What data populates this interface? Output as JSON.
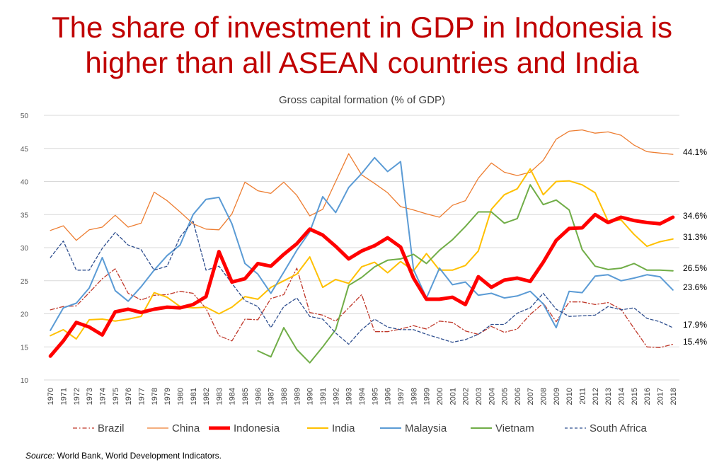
{
  "title_line1": "The share of investment in GDP in Indonesia is",
  "title_line2": "higher than all ASEAN countries and India",
  "chart_data": {
    "type": "line",
    "title": "Gross capital formation (% of GDP)",
    "ylim": [
      10,
      50
    ],
    "yticks": [
      10,
      15,
      20,
      25,
      30,
      35,
      40,
      45,
      50
    ],
    "grid": true,
    "legend_position": "bottom",
    "x": [
      1970,
      1971,
      1972,
      1973,
      1974,
      1975,
      1976,
      1977,
      1978,
      1979,
      1980,
      1981,
      1982,
      1983,
      1984,
      1985,
      1986,
      1987,
      1988,
      1989,
      1990,
      1991,
      1992,
      1993,
      1994,
      1995,
      1996,
      1997,
      1998,
      1999,
      2000,
      2001,
      2002,
      2003,
      2004,
      2005,
      2006,
      2007,
      2008,
      2009,
      2010,
      2011,
      2012,
      2013,
      2014,
      2015,
      2016,
      2017,
      2018
    ],
    "series": [
      {
        "name": "Brazil",
        "color": "#C0392B",
        "style": "dashdot",
        "width": 1.3,
        "values": [
          20.6,
          21.1,
          21.2,
          23.2,
          25.3,
          26.8,
          23.1,
          22.1,
          22.8,
          22.9,
          23.4,
          23.1,
          20.8,
          16.7,
          15.9,
          19.2,
          19.1,
          22.3,
          22.9,
          26.9,
          20.2,
          19.8,
          18.9,
          20.9,
          22.9,
          17.3,
          17.3,
          17.7,
          18.2,
          17.7,
          18.9,
          18.7,
          17.4,
          16.9,
          18.1,
          17.2,
          17.7,
          19.9,
          21.6,
          18.8,
          21.8,
          21.8,
          21.4,
          21.7,
          20.7,
          17.8,
          15.0,
          14.9,
          15.4
        ],
        "label": ""
      },
      {
        "name": "China",
        "color": "#ED7D31",
        "style": "solid",
        "width": 1.3,
        "values": [
          32.6,
          33.3,
          31.1,
          32.7,
          33.1,
          34.9,
          33.1,
          33.7,
          38.4,
          37.1,
          35.4,
          33.6,
          32.8,
          32.7,
          35.1,
          39.9,
          38.6,
          38.2,
          39.9,
          37.9,
          34.8,
          35.8,
          40.0,
          44.2,
          41.0,
          39.7,
          38.3,
          36.2,
          35.7,
          35.1,
          34.6,
          36.4,
          37.1,
          40.5,
          42.8,
          41.4,
          40.9,
          41.4,
          43.2,
          46.4,
          47.6,
          47.8,
          47.3,
          47.5,
          47.0,
          45.5,
          44.5,
          44.3,
          44.1
        ],
        "label": "44.1%"
      },
      {
        "name": "Indonesia",
        "color": "#FF0000",
        "style": "solid",
        "width": 5,
        "values": [
          13.6,
          15.9,
          18.7,
          18.0,
          16.8,
          20.3,
          20.7,
          20.2,
          20.7,
          21.0,
          20.9,
          21.4,
          22.6,
          29.4,
          24.8,
          25.3,
          27.6,
          27.2,
          29.0,
          30.6,
          32.8,
          31.9,
          30.2,
          28.3,
          29.5,
          30.3,
          31.5,
          30.1,
          25.4,
          22.2,
          22.2,
          22.5,
          21.4,
          25.6,
          24.0,
          25.1,
          25.4,
          24.9,
          27.8,
          31.1,
          32.9,
          33.0,
          35.0,
          33.8,
          34.6,
          34.1,
          33.8,
          33.6,
          34.6
        ],
        "label": "34.6%"
      },
      {
        "name": "India",
        "color": "#FFC000",
        "style": "solid",
        "width": 2,
        "values": [
          16.7,
          17.6,
          16.2,
          19.1,
          19.2,
          18.9,
          19.2,
          19.6,
          23.2,
          22.5,
          21.1,
          20.9,
          21.0,
          20.0,
          21.0,
          22.6,
          22.2,
          24.0,
          25.0,
          26.0,
          28.6,
          24.0,
          25.2,
          24.6,
          27.1,
          27.8,
          26.2,
          27.9,
          26.5,
          29.1,
          26.6,
          26.6,
          27.3,
          29.5,
          35.8,
          38.0,
          38.9,
          41.9,
          38.0,
          40.0,
          40.1,
          39.5,
          38.3,
          34.0,
          34.2,
          32.0,
          30.2,
          30.9,
          31.3
        ],
        "label": "31.3%"
      },
      {
        "name": "Malaysia",
        "color": "#5B9BD5",
        "style": "solid",
        "width": 2,
        "values": [
          17.5,
          20.9,
          21.6,
          23.9,
          28.5,
          23.5,
          21.9,
          24.1,
          26.6,
          28.8,
          30.4,
          35.0,
          37.3,
          37.6,
          33.6,
          27.6,
          26.0,
          23.1,
          26.3,
          29.6,
          32.4,
          37.7,
          35.3,
          39.1,
          41.2,
          43.6,
          41.5,
          43.0,
          26.7,
          22.4,
          26.9,
          24.4,
          24.8,
          22.8,
          23.1,
          22.4,
          22.7,
          23.4,
          21.5,
          17.9,
          23.4,
          23.2,
          25.7,
          25.9,
          25.0,
          25.4,
          25.9,
          25.6,
          23.6
        ],
        "label": "23.6%"
      },
      {
        "name": "Vietnam",
        "color": "#70AD47",
        "style": "solid",
        "width": 2,
        "values": [
          null,
          null,
          null,
          null,
          null,
          null,
          null,
          null,
          null,
          null,
          null,
          null,
          null,
          null,
          null,
          null,
          14.4,
          13.5,
          17.9,
          14.6,
          12.6,
          15.0,
          17.6,
          24.3,
          25.5,
          27.1,
          28.1,
          28.3,
          29.0,
          27.6,
          29.6,
          31.2,
          33.2,
          35.4,
          35.4,
          33.7,
          34.4,
          39.5,
          36.5,
          37.2,
          35.7,
          29.7,
          27.2,
          26.7,
          26.9,
          27.6,
          26.6,
          26.6,
          26.5
        ],
        "label": "26.5%"
      },
      {
        "name": "South Africa",
        "color": "#2F4F8F",
        "style": "dashed",
        "width": 1.3,
        "values": [
          28.5,
          31.0,
          26.6,
          26.6,
          29.9,
          32.3,
          30.4,
          29.7,
          26.6,
          27.2,
          31.6,
          34.0,
          26.6,
          27.2,
          24.6,
          22.0,
          21.1,
          17.9,
          21.1,
          22.4,
          19.6,
          19.2,
          17.1,
          15.4,
          17.6,
          19.2,
          18.0,
          17.6,
          17.6,
          16.9,
          16.3,
          15.7,
          16.1,
          16.9,
          18.4,
          18.4,
          20.1,
          20.9,
          23.1,
          20.7,
          19.6,
          19.7,
          19.8,
          21.1,
          20.6,
          20.9,
          19.3,
          18.8,
          17.9
        ],
        "label": "17.9%"
      }
    ],
    "end_labels_order": [
      "China",
      "Indonesia",
      "India",
      "Vietnam",
      "Malaysia",
      "South Africa",
      "Brazil"
    ],
    "brazil_label": "15.4%"
  },
  "source_label": "Source:",
  "source_text": " World Bank, World Development Indicators."
}
